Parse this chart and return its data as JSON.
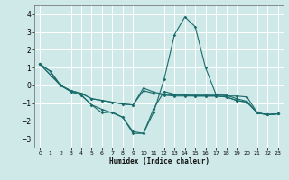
{
  "xlabel": "Humidex (Indice chaleur)",
  "xlim": [
    -0.5,
    23.5
  ],
  "ylim": [
    -3.5,
    4.5
  ],
  "yticks": [
    -3,
    -2,
    -1,
    0,
    1,
    2,
    3,
    4
  ],
  "xticks": [
    0,
    1,
    2,
    3,
    4,
    5,
    6,
    7,
    8,
    9,
    10,
    11,
    12,
    13,
    14,
    15,
    16,
    17,
    18,
    19,
    20,
    21,
    22,
    23
  ],
  "bg_color": "#cfe8e8",
  "grid_color": "#ffffff",
  "line_color": "#1a6b6b",
  "lines": [
    {
      "x": [
        0,
        1,
        2,
        3,
        4,
        5,
        6,
        7,
        8,
        9,
        10,
        11,
        12,
        13,
        14,
        15,
        16,
        17,
        18,
        19,
        20,
        21,
        22,
        23
      ],
      "y": [
        1.2,
        0.8,
        0.0,
        -0.35,
        -0.55,
        -1.1,
        -1.35,
        -1.55,
        -1.8,
        -2.6,
        -2.7,
        -1.5,
        0.35,
        2.85,
        3.85,
        3.3,
        1.0,
        -0.5,
        -0.6,
        -0.6,
        -0.65,
        -1.55,
        -1.65,
        -1.6
      ]
    },
    {
      "x": [
        0,
        1,
        2,
        3,
        4,
        5,
        6,
        7,
        8,
        9,
        10,
        11,
        12,
        13,
        14,
        15,
        16,
        17,
        18,
        19,
        20,
        21,
        22,
        23
      ],
      "y": [
        1.2,
        0.8,
        0.0,
        -0.35,
        -0.55,
        -1.1,
        -1.55,
        -1.5,
        -1.8,
        -2.7,
        -2.7,
        -1.3,
        -0.35,
        -0.5,
        -0.55,
        -0.6,
        -0.6,
        -0.6,
        -0.65,
        -0.85,
        -0.95,
        -1.55,
        -1.65,
        -1.6
      ]
    },
    {
      "x": [
        0,
        2,
        3,
        4,
        5,
        6,
        7,
        8,
        9,
        10,
        11,
        12,
        13,
        14,
        15,
        16,
        17,
        18,
        19,
        20,
        21,
        22,
        23
      ],
      "y": [
        1.2,
        0.0,
        -0.3,
        -0.45,
        -0.75,
        -0.85,
        -0.95,
        -1.05,
        -1.1,
        -0.3,
        -0.45,
        -0.55,
        -0.6,
        -0.6,
        -0.6,
        -0.6,
        -0.6,
        -0.65,
        -0.85,
        -0.95,
        -1.55,
        -1.65,
        -1.6
      ]
    },
    {
      "x": [
        0,
        2,
        3,
        4,
        5,
        6,
        7,
        8,
        9,
        10,
        11,
        12,
        13,
        14,
        15,
        16,
        17,
        18,
        19,
        20,
        21,
        22,
        23
      ],
      "y": [
        1.2,
        0.0,
        -0.3,
        -0.45,
        -0.75,
        -0.85,
        -0.95,
        -1.05,
        -1.1,
        -0.15,
        -0.38,
        -0.5,
        -0.55,
        -0.55,
        -0.55,
        -0.55,
        -0.55,
        -0.55,
        -0.75,
        -0.9,
        -1.55,
        -1.65,
        -1.6
      ]
    }
  ]
}
